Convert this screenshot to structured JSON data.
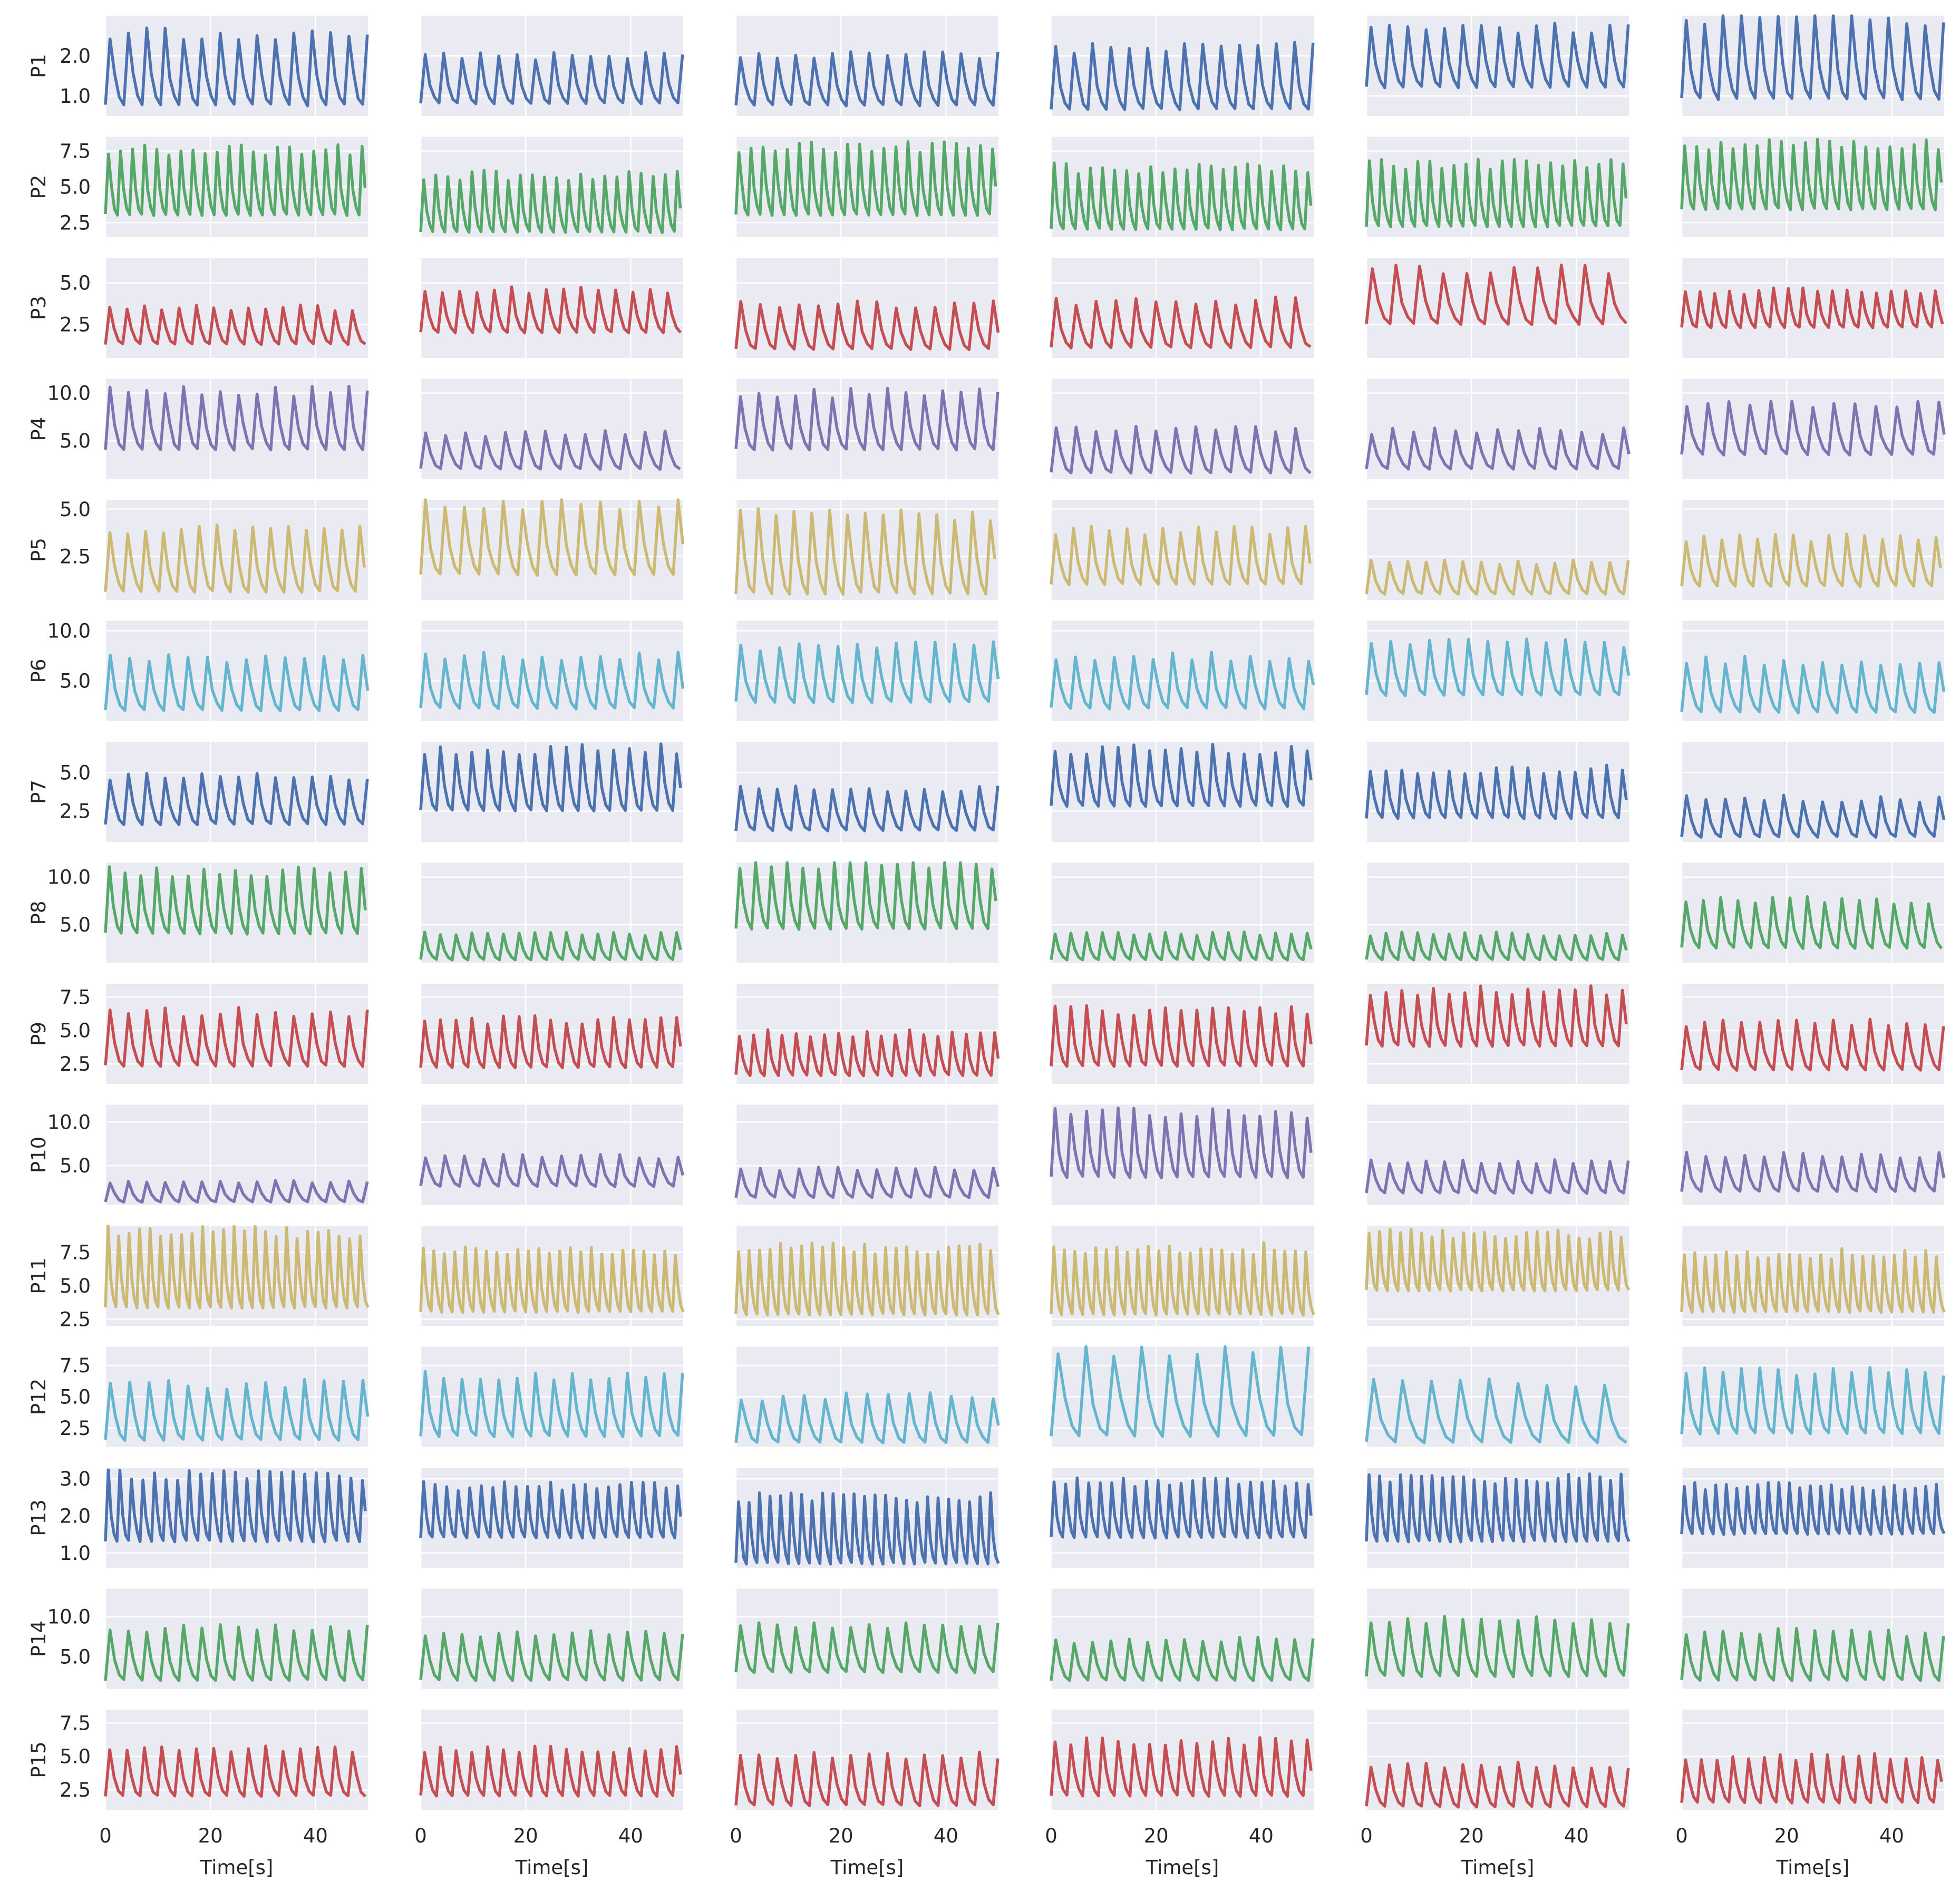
{
  "figure": {
    "rows": 15,
    "cols": 6,
    "sharex": true,
    "row_labels": [
      "P1",
      "P2",
      "P3",
      "P4",
      "P5",
      "P6",
      "P7",
      "P8",
      "P9",
      "P10",
      "P11",
      "P12",
      "P13",
      "P14",
      "P15"
    ],
    "xlabel": "Time[s]",
    "background": "#EAEAF2",
    "grid_color": "#FFFFFF",
    "text_color": "#262626"
  },
  "chart_data": {
    "type": "line",
    "x_range": [
      0,
      50
    ],
    "x_ticks": [
      0,
      20,
      40
    ],
    "x_tick_labels": [
      "0",
      "20",
      "40"
    ],
    "grid": true,
    "title": "",
    "row_colors": [
      "#4C72B0",
      "#55A868",
      "#C44E52",
      "#8172B2",
      "#CCB974",
      "#64B5CD",
      "#4C72B0",
      "#55A868",
      "#C44E52",
      "#8172B2",
      "#CCB974",
      "#64B5CD",
      "#4C72B0",
      "#55A868",
      "#C44E52"
    ],
    "rows": [
      {
        "label": "P1",
        "ylim": [
          0.5,
          3.0
        ],
        "yticks": [
          1.0,
          2.0
        ],
        "ytick_labels": [
          "1.0",
          "2.0"
        ],
        "panels": [
          {
            "col": 1,
            "period": 3.5,
            "min": 0.75,
            "max": 2.55
          },
          {
            "col": 2,
            "period": 3.5,
            "min": 0.8,
            "max": 2.0
          },
          {
            "col": 3,
            "period": 3.5,
            "min": 0.75,
            "max": 2.05
          },
          {
            "col": 4,
            "period": 3.5,
            "min": 0.65,
            "max": 2.2
          },
          {
            "col": 5,
            "period": 3.5,
            "min": 1.2,
            "max": 2.7
          },
          {
            "col": 6,
            "period": 3.5,
            "min": 0.9,
            "max": 2.9
          }
        ]
      },
      {
        "label": "P2",
        "ylim": [
          1.5,
          8.5
        ],
        "yticks": [
          2.5,
          5.0,
          7.5
        ],
        "ytick_labels": [
          "2.5",
          "5.0",
          "7.5"
        ],
        "panels": [
          {
            "col": 1,
            "period": 2.3,
            "min": 3.0,
            "max": 7.6
          },
          {
            "col": 2,
            "period": 2.3,
            "min": 1.8,
            "max": 5.8
          },
          {
            "col": 3,
            "period": 2.3,
            "min": 3.0,
            "max": 7.8
          },
          {
            "col": 4,
            "period": 2.3,
            "min": 2.0,
            "max": 6.3
          },
          {
            "col": 5,
            "period": 2.3,
            "min": 2.2,
            "max": 6.6
          },
          {
            "col": 6,
            "period": 2.3,
            "min": 3.4,
            "max": 8.0
          }
        ]
      },
      {
        "label": "P3",
        "ylim": [
          0.5,
          6.5
        ],
        "yticks": [
          2.5,
          5.0
        ],
        "ytick_labels": [
          "2.5",
          "5.0"
        ],
        "panels": [
          {
            "col": 1,
            "period": 3.3,
            "min": 1.3,
            "max": 3.5
          },
          {
            "col": 2,
            "period": 3.3,
            "min": 2.0,
            "max": 4.6
          },
          {
            "col": 3,
            "period": 3.7,
            "min": 1.0,
            "max": 3.7
          },
          {
            "col": 4,
            "period": 3.8,
            "min": 1.1,
            "max": 3.9
          },
          {
            "col": 5,
            "period": 4.5,
            "min": 2.5,
            "max": 5.8
          },
          {
            "col": 6,
            "period": 2.8,
            "min": 2.3,
            "max": 4.5
          }
        ]
      },
      {
        "label": "P4",
        "ylim": [
          1.0,
          11.5
        ],
        "yticks": [
          5.0,
          10.0
        ],
        "ytick_labels": [
          "5.0",
          "10.0"
        ],
        "panels": [
          {
            "col": 1,
            "period": 3.5,
            "min": 4.0,
            "max": 10.2
          },
          {
            "col": 2,
            "period": 3.8,
            "min": 2.0,
            "max": 5.8
          },
          {
            "col": 3,
            "period": 3.5,
            "min": 4.0,
            "max": 10.0
          },
          {
            "col": 4,
            "period": 3.8,
            "min": 1.6,
            "max": 6.2
          },
          {
            "col": 5,
            "period": 4.0,
            "min": 2.0,
            "max": 6.0
          },
          {
            "col": 6,
            "period": 4.0,
            "min": 3.5,
            "max": 8.8
          }
        ]
      },
      {
        "label": "P5",
        "ylim": [
          0.2,
          5.5
        ],
        "yticks": [
          2.5,
          5.0
        ],
        "ytick_labels": [
          "2.5",
          "5.0"
        ],
        "panels": [
          {
            "col": 1,
            "period": 3.4,
            "min": 0.6,
            "max": 3.9
          },
          {
            "col": 2,
            "period": 3.7,
            "min": 1.5,
            "max": 5.3
          },
          {
            "col": 3,
            "period": 3.4,
            "min": 0.5,
            "max": 4.7
          },
          {
            "col": 4,
            "period": 3.4,
            "min": 1.0,
            "max": 3.9
          },
          {
            "col": 5,
            "period": 3.5,
            "min": 0.5,
            "max": 2.2
          },
          {
            "col": 6,
            "period": 3.4,
            "min": 0.9,
            "max": 3.5
          }
        ]
      },
      {
        "label": "P6",
        "ylim": [
          1.0,
          11.0
        ],
        "yticks": [
          5.0,
          10.0
        ],
        "ytick_labels": [
          "5.0",
          "10.0"
        ],
        "panels": [
          {
            "col": 1,
            "period": 3.7,
            "min": 2.0,
            "max": 7.3
          },
          {
            "col": 2,
            "period": 3.7,
            "min": 2.2,
            "max": 7.4
          },
          {
            "col": 3,
            "period": 3.7,
            "min": 2.8,
            "max": 8.5
          },
          {
            "col": 4,
            "period": 3.7,
            "min": 2.2,
            "max": 7.4
          },
          {
            "col": 5,
            "period": 3.7,
            "min": 3.5,
            "max": 8.8
          },
          {
            "col": 6,
            "period": 3.7,
            "min": 1.8,
            "max": 7.0
          }
        ]
      },
      {
        "label": "P7",
        "ylim": [
          0.5,
          7.0
        ],
        "yticks": [
          2.5,
          5.0
        ],
        "ytick_labels": [
          "2.5",
          "5.0"
        ],
        "panels": [
          {
            "col": 1,
            "period": 3.5,
            "min": 1.6,
            "max": 4.8
          },
          {
            "col": 2,
            "period": 3.0,
            "min": 2.5,
            "max": 6.5
          },
          {
            "col": 3,
            "period": 3.5,
            "min": 1.2,
            "max": 4.0
          },
          {
            "col": 4,
            "period": 3.0,
            "min": 2.8,
            "max": 6.5
          },
          {
            "col": 5,
            "period": 3.0,
            "min": 2.0,
            "max": 5.2
          },
          {
            "col": 6,
            "period": 3.7,
            "min": 0.8,
            "max": 3.3
          }
        ]
      },
      {
        "label": "P8",
        "ylim": [
          1.0,
          11.5
        ],
        "yticks": [
          5.0,
          10.0
        ],
        "ytick_labels": [
          "5.0",
          "10.0"
        ],
        "panels": [
          {
            "col": 1,
            "period": 3.0,
            "min": 4.0,
            "max": 10.5
          },
          {
            "col": 2,
            "period": 3.0,
            "min": 1.3,
            "max": 4.0
          },
          {
            "col": 3,
            "period": 3.0,
            "min": 4.5,
            "max": 11.3
          },
          {
            "col": 4,
            "period": 3.0,
            "min": 1.3,
            "max": 4.0
          },
          {
            "col": 5,
            "period": 3.0,
            "min": 1.3,
            "max": 4.0
          },
          {
            "col": 6,
            "period": 3.3,
            "min": 2.5,
            "max": 7.5
          }
        ]
      },
      {
        "label": "P9",
        "ylim": [
          1.0,
          8.5
        ],
        "yticks": [
          2.5,
          5.0,
          7.5
        ],
        "ytick_labels": [
          "2.5",
          "5.0",
          "7.5"
        ],
        "panels": [
          {
            "col": 1,
            "period": 3.5,
            "min": 2.3,
            "max": 6.4
          },
          {
            "col": 2,
            "period": 3.0,
            "min": 2.2,
            "max": 5.8
          },
          {
            "col": 3,
            "period": 2.7,
            "min": 1.6,
            "max": 4.8
          },
          {
            "col": 4,
            "period": 3.0,
            "min": 2.3,
            "max": 6.5
          },
          {
            "col": 5,
            "period": 3.0,
            "min": 3.8,
            "max": 8.0
          },
          {
            "col": 6,
            "period": 3.5,
            "min": 2.0,
            "max": 5.6
          }
        ]
      },
      {
        "label": "P10",
        "ylim": [
          0.5,
          12.0
        ],
        "yticks": [
          5.0,
          10.0
        ],
        "ytick_labels": [
          "5.0",
          "10.0"
        ],
        "panels": [
          {
            "col": 1,
            "period": 3.5,
            "min": 0.8,
            "max": 3.2
          },
          {
            "col": 2,
            "period": 3.7,
            "min": 2.6,
            "max": 6.0
          },
          {
            "col": 3,
            "period": 3.7,
            "min": 1.3,
            "max": 4.7
          },
          {
            "col": 4,
            "period": 3.0,
            "min": 3.6,
            "max": 11.0
          },
          {
            "col": 5,
            "period": 3.5,
            "min": 1.8,
            "max": 5.5
          },
          {
            "col": 6,
            "period": 3.7,
            "min": 2.0,
            "max": 6.2
          }
        ]
      },
      {
        "label": "P11",
        "ylim": [
          2.0,
          9.5
        ],
        "yticks": [
          2.5,
          5.0,
          7.5
        ],
        "ytick_labels": [
          "2.5",
          "5.0",
          "7.5"
        ],
        "panels": [
          {
            "col": 1,
            "period": 2.0,
            "min": 3.3,
            "max": 9.0
          },
          {
            "col": 2,
            "period": 2.0,
            "min": 3.0,
            "max": 7.7
          },
          {
            "col": 3,
            "period": 2.0,
            "min": 2.8,
            "max": 7.8
          },
          {
            "col": 4,
            "period": 2.0,
            "min": 2.8,
            "max": 7.8
          },
          {
            "col": 5,
            "period": 2.0,
            "min": 4.6,
            "max": 8.9
          },
          {
            "col": 6,
            "period": 2.0,
            "min": 3.0,
            "max": 7.4
          }
        ]
      },
      {
        "label": "P12",
        "ylim": [
          1.0,
          9.0
        ],
        "yticks": [
          2.5,
          5.0,
          7.5
        ],
        "ytick_labels": [
          "2.5",
          "5.0",
          "7.5"
        ],
        "panels": [
          {
            "col": 1,
            "period": 3.7,
            "min": 1.5,
            "max": 6.0
          },
          {
            "col": 2,
            "period": 3.5,
            "min": 1.8,
            "max": 6.6
          },
          {
            "col": 3,
            "period": 4.0,
            "min": 1.3,
            "max": 5.0
          },
          {
            "col": 4,
            "period": 5.3,
            "min": 1.8,
            "max": 8.6
          },
          {
            "col": 5,
            "period": 5.5,
            "min": 1.3,
            "max": 6.0
          },
          {
            "col": 6,
            "period": 3.5,
            "min": 2.0,
            "max": 7.0
          }
        ]
      },
      {
        "label": "P13",
        "ylim": [
          0.6,
          3.3
        ],
        "yticks": [
          1.0,
          2.0,
          3.0
        ],
        "ytick_labels": [
          "1.0",
          "2.0",
          "3.0"
        ],
        "panels": [
          {
            "col": 1,
            "period": 2.2,
            "min": 1.3,
            "max": 3.1
          },
          {
            "col": 2,
            "period": 2.2,
            "min": 1.4,
            "max": 2.8
          },
          {
            "col": 3,
            "period": 2.0,
            "min": 0.7,
            "max": 2.5
          },
          {
            "col": 4,
            "period": 2.2,
            "min": 1.4,
            "max": 2.9
          },
          {
            "col": 5,
            "period": 2.0,
            "min": 1.3,
            "max": 3.0
          },
          {
            "col": 6,
            "period": 2.0,
            "min": 1.5,
            "max": 2.8
          }
        ]
      },
      {
        "label": "P14",
        "ylim": [
          1.0,
          13.5
        ],
        "yticks": [
          5.0,
          10.0
        ],
        "ytick_labels": [
          "5.0",
          "10.0"
        ],
        "panels": [
          {
            "col": 1,
            "period": 3.5,
            "min": 2.0,
            "max": 8.5
          },
          {
            "col": 2,
            "period": 3.5,
            "min": 2.0,
            "max": 8.0
          },
          {
            "col": 3,
            "period": 3.5,
            "min": 3.0,
            "max": 8.8
          },
          {
            "col": 4,
            "period": 3.5,
            "min": 2.0,
            "max": 7.0
          },
          {
            "col": 5,
            "period": 3.5,
            "min": 2.5,
            "max": 9.5
          },
          {
            "col": 6,
            "period": 3.5,
            "min": 2.0,
            "max": 8.0
          }
        ]
      },
      {
        "label": "P15",
        "ylim": [
          1.0,
          8.5
        ],
        "yticks": [
          2.5,
          5.0,
          7.5
        ],
        "ytick_labels": [
          "2.5",
          "5.0",
          "7.5"
        ],
        "panels": [
          {
            "col": 1,
            "period": 3.3,
            "min": 2.0,
            "max": 5.5
          },
          {
            "col": 2,
            "period": 3.0,
            "min": 2.0,
            "max": 5.6
          },
          {
            "col": 3,
            "period": 3.5,
            "min": 1.3,
            "max": 5.0
          },
          {
            "col": 4,
            "period": 3.0,
            "min": 2.0,
            "max": 6.2
          },
          {
            "col": 5,
            "period": 3.5,
            "min": 1.2,
            "max": 4.3
          },
          {
            "col": 6,
            "period": 3.0,
            "min": 1.5,
            "max": 5.0
          }
        ]
      }
    ]
  }
}
